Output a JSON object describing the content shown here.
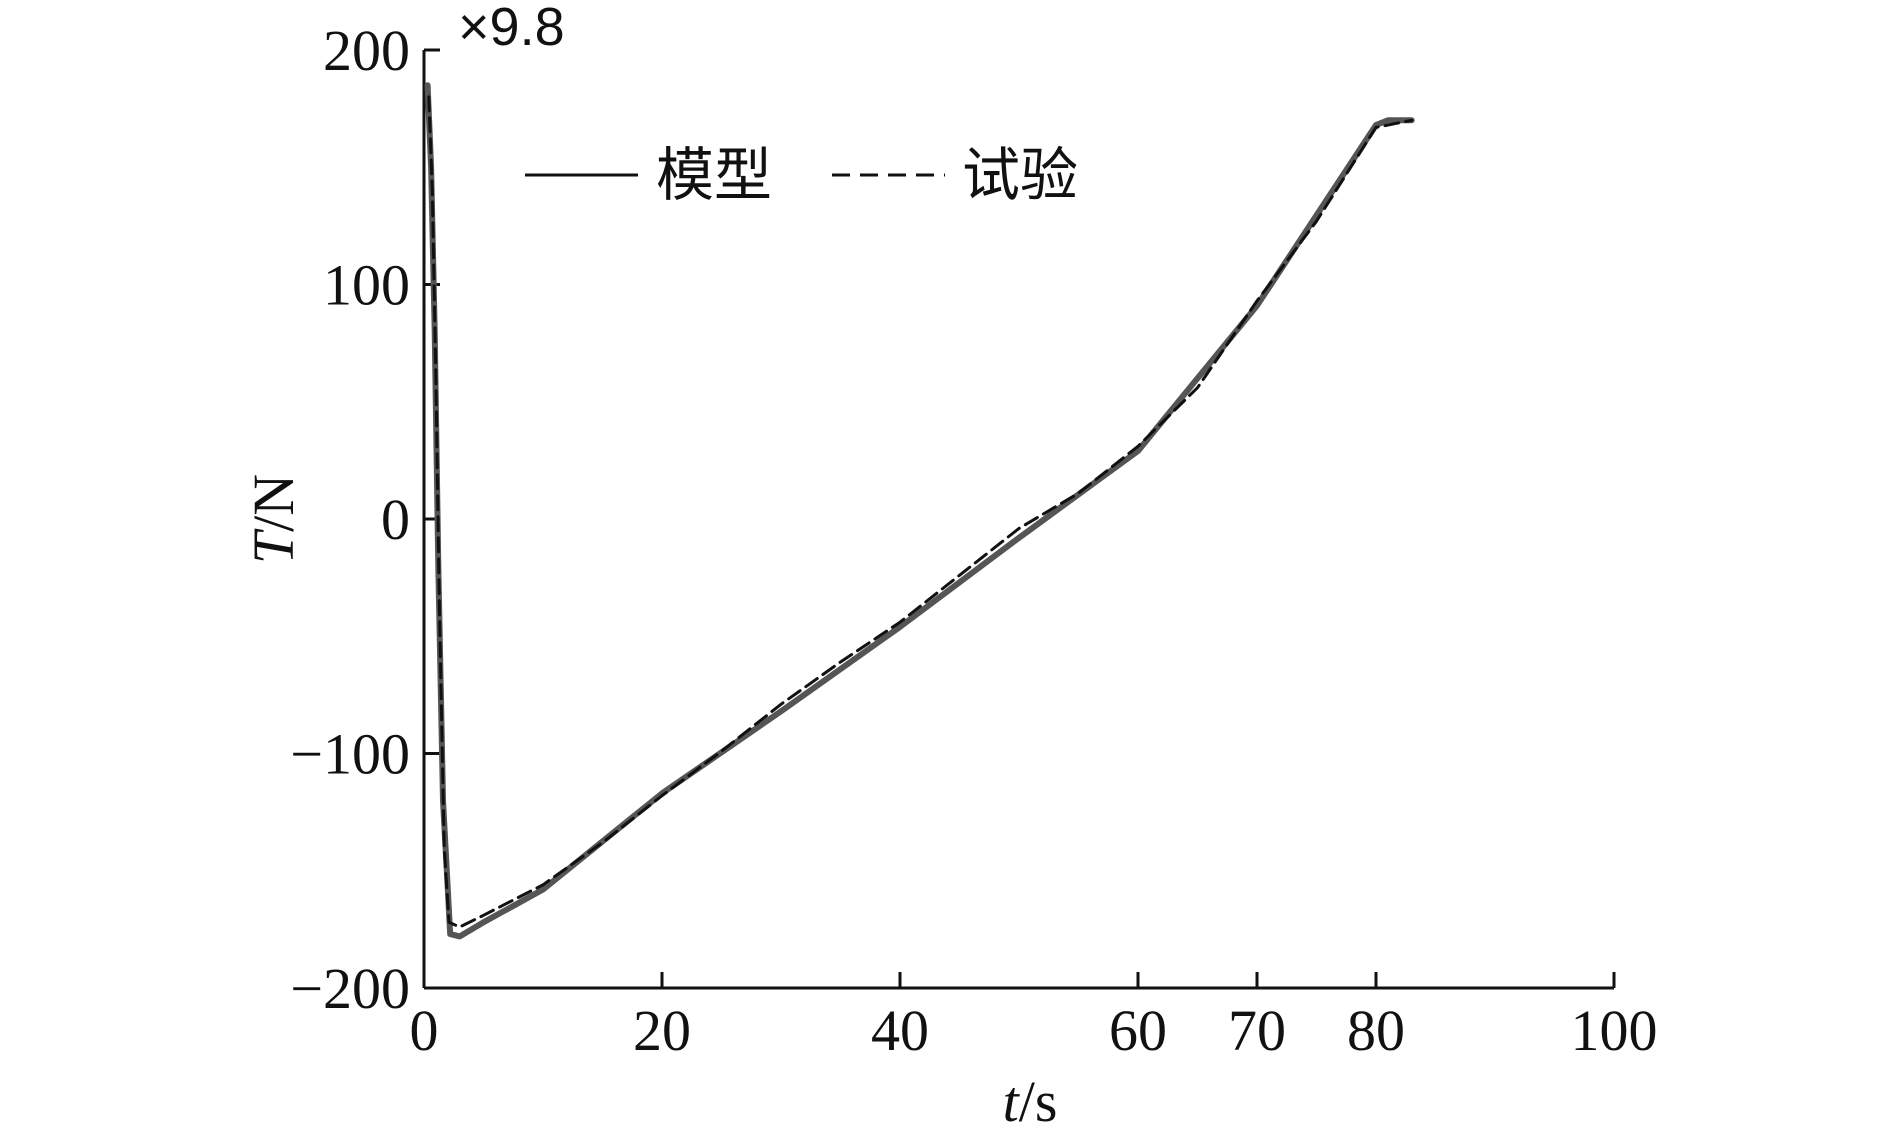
{
  "chart_data": {
    "type": "line",
    "xlabel_var": "t",
    "xlabel_unit": "/s",
    "ylabel_var": "T",
    "ylabel_unit": "/N",
    "y_multiplier": "×9.8",
    "xlim": [
      0,
      100
    ],
    "ylim": [
      -200,
      200
    ],
    "x_ticks": [
      "0",
      "20",
      "40",
      "60",
      "70",
      "80",
      "100"
    ],
    "x_tick_values": [
      0,
      20,
      40,
      60,
      70,
      80,
      100
    ],
    "y_ticks": [
      "200",
      "100",
      "0",
      "−100",
      "−200"
    ],
    "y_tick_values": [
      200,
      100,
      0,
      -100,
      -200
    ],
    "grid": false,
    "legend_position": "top-left",
    "series": [
      {
        "name": "模型",
        "style": "solid",
        "color": "#555555",
        "x": [
          0.3,
          0.6,
          0.9,
          1.2,
          1.6,
          2.2,
          3,
          5,
          10,
          20,
          30,
          40,
          50,
          60,
          70,
          80,
          81,
          83
        ],
        "y": [
          185,
          150,
          80,
          -20,
          -120,
          -177,
          -178,
          -172,
          -158,
          -117,
          -82,
          -46,
          -8,
          29,
          91,
          168,
          170,
          170
        ]
      },
      {
        "name": "试验",
        "style": "dashed",
        "color": "#111111",
        "x": [
          0.4,
          0.7,
          1.0,
          1.3,
          1.7,
          2.1,
          3,
          5,
          10,
          15,
          20,
          25,
          30,
          35,
          40,
          45,
          50,
          55,
          60,
          65,
          70,
          75,
          80,
          83
        ],
        "y": [
          180,
          140,
          60,
          -40,
          -140,
          -172,
          -174,
          -169,
          -156,
          -138,
          -118,
          -99,
          -79,
          -61,
          -44,
          -24,
          -4,
          11,
          31,
          56,
          93,
          127,
          167,
          170
        ]
      }
    ]
  }
}
